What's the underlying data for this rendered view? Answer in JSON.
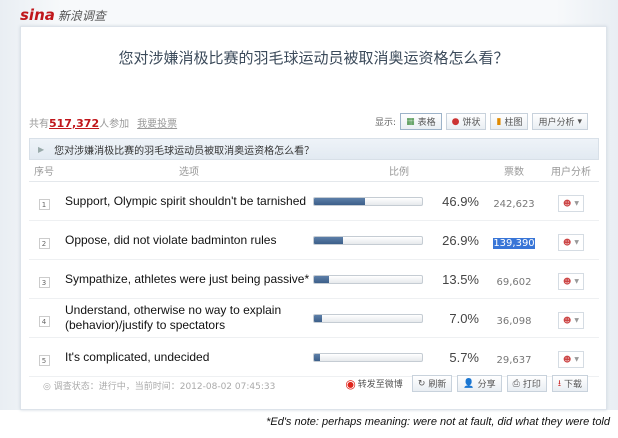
{
  "logo": {
    "brand": "sina",
    "subtitle": "新浪调查"
  },
  "survey": {
    "title": "您对涉嫌消极比赛的羽毛球运动员被取消奥运资格怎么看？",
    "participants_prefix": "共有",
    "participants": "517,372",
    "participants_suffix": "人参加",
    "vote_link": "我要投票"
  },
  "display": {
    "label": "显示:",
    "table": "表格",
    "pie": "饼状",
    "bar": "柱图",
    "user_analysis": "用户分析"
  },
  "table": {
    "question": "您对涉嫌消极比赛的羽毛球运动员被取消奥运资格怎么看？",
    "headers": [
      "序号",
      "选项",
      "比例",
      "票数",
      "用户分析"
    ],
    "rows": [
      {
        "n": "1",
        "option": "Support, Olympic spirit shouldn't be tarnished",
        "pct": "46.9%",
        "value": 46.9,
        "votes": "242,623"
      },
      {
        "n": "2",
        "option": "Oppose, did not violate badminton rules",
        "pct": "26.9%",
        "value": 26.9,
        "votes": "139,390",
        "highlighted": true
      },
      {
        "n": "3",
        "option": "Sympathize, athletes were just being passive*",
        "pct": "13.5%",
        "value": 13.5,
        "votes": "69,602"
      },
      {
        "n": "4",
        "option": "Understand, otherwise no way to explain (behavior)/justify to spectators",
        "pct": "7.0%",
        "value": 7.0,
        "votes": "36,098"
      },
      {
        "n": "5",
        "option": "It's complicated, undecided",
        "pct": "5.7%",
        "value": 5.7,
        "votes": "29,637"
      }
    ]
  },
  "footer": {
    "status": "◎ 调查状态：进行中，当前时间：2012-08-02 07:45:33",
    "weibo": "转发至微博",
    "refresh": "刷新",
    "share": "分享",
    "print": "打印",
    "download": "下载"
  },
  "note": "*Ed's note: perhaps meaning: were not at fault, did what they were told",
  "colors": {
    "accent": "#c0161b",
    "bar": "#3c5f8a",
    "highlight": "#3875d7"
  }
}
